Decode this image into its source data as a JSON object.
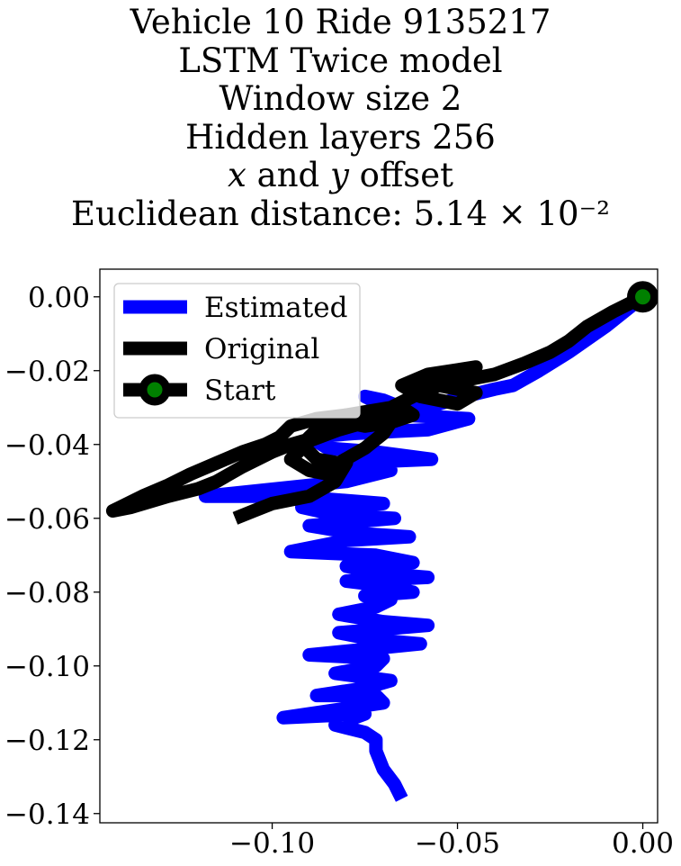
{
  "chart_data": {
    "type": "line",
    "title_lines": [
      "Vehicle 10 Ride 9135217",
      "LSTM Twice model",
      "Window size 2",
      "Hidden layers 256",
      "x and y offset",
      "Euclidean distance: 5.14 × 10⁻²"
    ],
    "xlabel": "",
    "ylabel": "",
    "xlim": [
      -0.1465,
      0.004
    ],
    "ylim": [
      -0.1425,
      0.0075
    ],
    "xticks": [
      -0.1,
      -0.05,
      0.0
    ],
    "xtick_labels": [
      "−0.10",
      "−0.05",
      "0.00"
    ],
    "yticks": [
      0.0,
      -0.02,
      -0.04,
      -0.06,
      -0.08,
      -0.1,
      -0.12,
      -0.14
    ],
    "ytick_labels": [
      "0.00",
      "−0.02",
      "−0.04",
      "−0.06",
      "−0.08",
      "−0.10",
      "−0.12",
      "−0.14"
    ],
    "grid": false,
    "legend_position": "top-left",
    "series": [
      {
        "name": "Estimated",
        "color": "#0000ff",
        "x": [
          0.0,
          -0.01,
          -0.02,
          -0.028,
          -0.035,
          -0.04,
          -0.048,
          -0.055,
          -0.065,
          -0.07,
          -0.075,
          -0.065,
          -0.047,
          -0.058,
          -0.078,
          -0.09,
          -0.085,
          -0.072,
          -0.057,
          -0.08,
          -0.085,
          -0.068,
          -0.08,
          -0.118,
          -0.095,
          -0.07,
          -0.092,
          -0.083,
          -0.067,
          -0.09,
          -0.078,
          -0.063,
          -0.08,
          -0.095,
          -0.072,
          -0.062,
          -0.08,
          -0.07,
          -0.058,
          -0.08,
          -0.072,
          -0.062,
          -0.075,
          -0.068,
          -0.072,
          -0.082,
          -0.07,
          -0.058,
          -0.082,
          -0.072,
          -0.06,
          -0.09,
          -0.07,
          -0.072,
          -0.083,
          -0.068,
          -0.075,
          -0.088,
          -0.072,
          -0.07,
          -0.097,
          -0.075,
          -0.083,
          -0.075,
          -0.072,
          -0.072,
          -0.07,
          -0.067,
          -0.065
        ],
        "y": [
          0.0,
          -0.008,
          -0.015,
          -0.02,
          -0.024,
          -0.025,
          -0.027,
          -0.029,
          -0.03,
          -0.028,
          -0.027,
          -0.032,
          -0.033,
          -0.036,
          -0.037,
          -0.038,
          -0.041,
          -0.042,
          -0.044,
          -0.045,
          -0.046,
          -0.047,
          -0.05,
          -0.054,
          -0.054,
          -0.056,
          -0.057,
          -0.059,
          -0.06,
          -0.062,
          -0.064,
          -0.065,
          -0.066,
          -0.069,
          -0.07,
          -0.072,
          -0.073,
          -0.075,
          -0.076,
          -0.077,
          -0.078,
          -0.08,
          -0.081,
          -0.082,
          -0.084,
          -0.086,
          -0.088,
          -0.089,
          -0.091,
          -0.093,
          -0.094,
          -0.097,
          -0.098,
          -0.1,
          -0.102,
          -0.104,
          -0.106,
          -0.108,
          -0.108,
          -0.11,
          -0.114,
          -0.113,
          -0.116,
          -0.118,
          -0.12,
          -0.123,
          -0.128,
          -0.132,
          -0.136
        ]
      },
      {
        "name": "Original",
        "color": "#000000",
        "x": [
          0.0,
          -0.008,
          -0.015,
          -0.02,
          -0.025,
          -0.032,
          -0.04,
          -0.045,
          -0.055,
          -0.06,
          -0.05,
          -0.045,
          -0.058,
          -0.065,
          -0.06,
          -0.05,
          -0.045,
          -0.055,
          -0.062,
          -0.068,
          -0.08,
          -0.088,
          -0.095,
          -0.098,
          -0.102,
          -0.108,
          -0.115,
          -0.122,
          -0.128,
          -0.135,
          -0.143,
          -0.138,
          -0.128,
          -0.12,
          -0.115,
          -0.108,
          -0.1,
          -0.095,
          -0.088,
          -0.082,
          -0.078,
          -0.072,
          -0.065,
          -0.062,
          -0.068,
          -0.075,
          -0.08,
          -0.088,
          -0.092,
          -0.088,
          -0.082,
          -0.075,
          -0.07,
          -0.068,
          -0.075,
          -0.082,
          -0.09,
          -0.095,
          -0.09,
          -0.085,
          -0.08,
          -0.083,
          -0.09,
          -0.095,
          -0.1,
          -0.105,
          -0.11
        ],
        "y": [
          0.0,
          -0.004,
          -0.008,
          -0.012,
          -0.015,
          -0.018,
          -0.021,
          -0.022,
          -0.024,
          -0.025,
          -0.022,
          -0.019,
          -0.021,
          -0.024,
          -0.027,
          -0.029,
          -0.026,
          -0.024,
          -0.027,
          -0.03,
          -0.032,
          -0.033,
          -0.035,
          -0.038,
          -0.04,
          -0.042,
          -0.045,
          -0.048,
          -0.051,
          -0.054,
          -0.058,
          -0.057,
          -0.054,
          -0.052,
          -0.05,
          -0.046,
          -0.042,
          -0.04,
          -0.038,
          -0.035,
          -0.033,
          -0.031,
          -0.03,
          -0.032,
          -0.034,
          -0.035,
          -0.034,
          -0.036,
          -0.04,
          -0.044,
          -0.045,
          -0.041,
          -0.037,
          -0.034,
          -0.034,
          -0.036,
          -0.039,
          -0.044,
          -0.047,
          -0.048,
          -0.045,
          -0.05,
          -0.054,
          -0.055,
          -0.056,
          -0.058,
          -0.06
        ]
      }
    ],
    "start_point": {
      "name": "Start",
      "x": 0.0,
      "y": 0.0,
      "fill": "#008000",
      "edge": "#000000"
    }
  }
}
